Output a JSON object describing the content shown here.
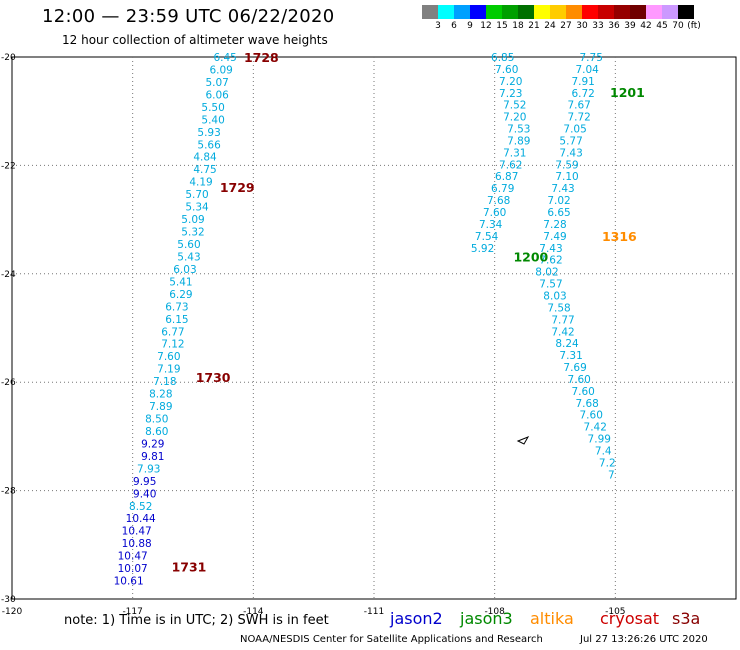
{
  "header": {
    "title": "12:00 — 23:59 UTC 06/22/2020",
    "subtitle": "12 hour collection of altimeter wave heights"
  },
  "legend": {
    "unit": "(ft)",
    "items": [
      {
        "label": "3",
        "color": "#808080"
      },
      {
        "label": "6",
        "color": "#00ffff"
      },
      {
        "label": "9",
        "color": "#00a0ff"
      },
      {
        "label": "12",
        "color": "#0000ff"
      },
      {
        "label": "15",
        "color": "#00cc00"
      },
      {
        "label": "18",
        "color": "#00a000"
      },
      {
        "label": "21",
        "color": "#007000"
      },
      {
        "label": "24",
        "color": "#ffff00"
      },
      {
        "label": "27",
        "color": "#ffcc00"
      },
      {
        "label": "30",
        "color": "#ff8c00"
      },
      {
        "label": "33",
        "color": "#ff0000"
      },
      {
        "label": "36",
        "color": "#c80000"
      },
      {
        "label": "39",
        "color": "#960000"
      },
      {
        "label": "42",
        "color": "#700000"
      },
      {
        "label": "45",
        "color": "#ff99ff"
      },
      {
        "label": "70",
        "color": "#cc99ff"
      },
      {
        "label": "",
        "color": "#000000"
      }
    ]
  },
  "map": {
    "lon_range": [
      -120,
      -102
    ],
    "lat_range": [
      -20,
      -30
    ],
    "lon_ticks": [
      "-120",
      "-117",
      "-114",
      "-111",
      "-108",
      "-105"
    ],
    "lat_ticks": [
      "-20",
      "-22",
      "-24",
      "-26",
      "-28",
      "-30"
    ],
    "land_shape": "island-outline",
    "colors": {
      "jason2": "#0000cc",
      "jason3": "#008800",
      "altika": "#ff8c00",
      "cryosat": "#cc0000",
      "s3a": "#880000",
      "swh_low": "#00aadd",
      "swh_mid": "#0000cc"
    },
    "tracks": [
      {
        "satellite": "s3a",
        "times": [
          {
            "label": "1728",
            "lat": -20.0
          },
          {
            "label": "1729",
            "lat": -22.4
          },
          {
            "label": "1730",
            "lat": -25.9
          },
          {
            "label": "1731",
            "lat": -29.4
          }
        ],
        "points": [
          {
            "lat": -20.0,
            "lon": -114.7,
            "v": "6.45"
          },
          {
            "lat": -20.23,
            "lon": -114.8,
            "v": "6.09"
          },
          {
            "lat": -20.46,
            "lon": -114.9,
            "v": "5.07"
          },
          {
            "lat": -20.69,
            "lon": -114.9,
            "v": "6.06"
          },
          {
            "lat": -20.92,
            "lon": -115.0,
            "v": "5.50"
          },
          {
            "lat": -21.15,
            "lon": -115.0,
            "v": "5.40"
          },
          {
            "lat": -21.38,
            "lon": -115.1,
            "v": "5.93"
          },
          {
            "lat": -21.61,
            "lon": -115.1,
            "v": "5.66"
          },
          {
            "lat": -21.84,
            "lon": -115.2,
            "v": "4.84"
          },
          {
            "lat": -22.07,
            "lon": -115.2,
            "v": "4.75"
          },
          {
            "lat": -22.3,
            "lon": -115.3,
            "v": "4.19"
          },
          {
            "lat": -22.53,
            "lon": -115.4,
            "v": "5.70"
          },
          {
            "lat": -22.76,
            "lon": -115.4,
            "v": "5.34"
          },
          {
            "lat": -22.99,
            "lon": -115.5,
            "v": "5.09"
          },
          {
            "lat": -23.22,
            "lon": -115.5,
            "v": "5.32"
          },
          {
            "lat": -23.45,
            "lon": -115.6,
            "v": "5.60"
          },
          {
            "lat": -23.68,
            "lon": -115.6,
            "v": "5.43"
          },
          {
            "lat": -23.91,
            "lon": -115.7,
            "v": "6.03"
          },
          {
            "lat": -24.14,
            "lon": -115.8,
            "v": "5.41"
          },
          {
            "lat": -24.37,
            "lon": -115.8,
            "v": "6.29"
          },
          {
            "lat": -24.6,
            "lon": -115.9,
            "v": "6.73"
          },
          {
            "lat": -24.83,
            "lon": -115.9,
            "v": "6.15"
          },
          {
            "lat": -25.06,
            "lon": -116.0,
            "v": "6.77"
          },
          {
            "lat": -25.29,
            "lon": -116.0,
            "v": "7.12"
          },
          {
            "lat": -25.52,
            "lon": -116.1,
            "v": "7.60"
          },
          {
            "lat": -25.75,
            "lon": -116.1,
            "v": "7.19"
          },
          {
            "lat": -25.98,
            "lon": -116.2,
            "v": "7.18"
          },
          {
            "lat": -26.21,
            "lon": -116.3,
            "v": "8.28"
          },
          {
            "lat": -26.44,
            "lon": -116.3,
            "v": "7.89"
          },
          {
            "lat": -26.67,
            "lon": -116.4,
            "v": "8.50"
          },
          {
            "lat": -26.9,
            "lon": -116.4,
            "v": "8.60"
          },
          {
            "lat": -27.13,
            "lon": -116.5,
            "v": "9.29"
          },
          {
            "lat": -27.36,
            "lon": -116.5,
            "v": "9.81"
          },
          {
            "lat": -27.59,
            "lon": -116.6,
            "v": "7.93"
          },
          {
            "lat": -27.82,
            "lon": -116.7,
            "v": "9.95"
          },
          {
            "lat": -28.05,
            "lon": -116.7,
            "v": "9.40"
          },
          {
            "lat": -28.28,
            "lon": -116.8,
            "v": "8.52"
          },
          {
            "lat": -28.51,
            "lon": -116.8,
            "v": "10.44"
          },
          {
            "lat": -28.74,
            "lon": -116.9,
            "v": "10.47"
          },
          {
            "lat": -28.97,
            "lon": -116.9,
            "v": "10.88"
          },
          {
            "lat": -29.2,
            "lon": -117.0,
            "v": "10.47"
          },
          {
            "lat": -29.43,
            "lon": -117.0,
            "v": "10.07"
          },
          {
            "lat": -29.66,
            "lon": -117.1,
            "v": "10.61"
          }
        ]
      },
      {
        "satellite": "jason3",
        "times": [
          {
            "label": "1201",
            "lat": -20.65
          },
          {
            "label": "1200",
            "lat": -23.68
          }
        ],
        "points": [
          {
            "lat": -20.0,
            "lon": -105.6,
            "v": "7.75"
          },
          {
            "lat": -20.22,
            "lon": -105.7,
            "v": "7.04"
          },
          {
            "lat": -20.44,
            "lon": -105.8,
            "v": "7.91"
          },
          {
            "lat": -20.66,
            "lon": -105.8,
            "v": "6.72"
          },
          {
            "lat": -20.88,
            "lon": -105.9,
            "v": "7.67"
          },
          {
            "lat": -21.1,
            "lon": -105.9,
            "v": "7.72"
          },
          {
            "lat": -21.32,
            "lon": -106.0,
            "v": "7.05"
          },
          {
            "lat": -21.54,
            "lon": -106.1,
            "v": "5.77"
          },
          {
            "lat": -21.76,
            "lon": -106.1,
            "v": "7.43"
          },
          {
            "lat": -21.98,
            "lon": -106.2,
            "v": "7.59"
          },
          {
            "lat": -22.2,
            "lon": -106.2,
            "v": "7.10"
          },
          {
            "lat": -22.42,
            "lon": -106.3,
            "v": "7.43"
          },
          {
            "lat": -22.64,
            "lon": -106.4,
            "v": "7.02"
          },
          {
            "lat": -22.86,
            "lon": -106.4,
            "v": "6.65"
          },
          {
            "lat": -23.08,
            "lon": -106.5,
            "v": "7.28"
          },
          {
            "lat": -23.3,
            "lon": -106.5,
            "v": "7.49"
          },
          {
            "lat": -23.52,
            "lon": -106.6,
            "v": "7.43"
          },
          {
            "lat": -23.74,
            "lon": -106.6,
            "v": "7.62"
          },
          {
            "lat": -23.96,
            "lon": -106.7,
            "v": "8.02"
          },
          {
            "lat": -24.18,
            "lon": -106.6,
            "v": "7.57"
          },
          {
            "lat": -24.4,
            "lon": -106.5,
            "v": "8.03"
          },
          {
            "lat": -24.62,
            "lon": -106.4,
            "v": "7.58"
          },
          {
            "lat": -24.84,
            "lon": -106.3,
            "v": "7.77"
          },
          {
            "lat": -25.06,
            "lon": -106.3,
            "v": "7.42"
          },
          {
            "lat": -25.28,
            "lon": -106.2,
            "v": "8.24"
          },
          {
            "lat": -25.5,
            "lon": -106.1,
            "v": "7.31"
          },
          {
            "lat": -25.72,
            "lon": -106.0,
            "v": "7.69"
          },
          {
            "lat": -25.94,
            "lon": -105.9,
            "v": "7.60"
          },
          {
            "lat": -26.16,
            "lon": -105.8,
            "v": "7.60"
          },
          {
            "lat": -26.38,
            "lon": -105.7,
            "v": "7.68"
          },
          {
            "lat": -26.6,
            "lon": -105.6,
            "v": "7.60"
          },
          {
            "lat": -26.82,
            "lon": -105.5,
            "v": "7.42"
          },
          {
            "lat": -27.04,
            "lon": -105.4,
            "v": "7.99"
          },
          {
            "lat": -27.26,
            "lon": -105.3,
            "v": "7.4"
          },
          {
            "lat": -27.48,
            "lon": -105.2,
            "v": "7.2"
          },
          {
            "lat": -27.7,
            "lon": -105.1,
            "v": "7"
          }
        ]
      },
      {
        "satellite": "jason3-north",
        "points": [
          {
            "lat": -20.0,
            "lon": -107.8,
            "v": "6.85"
          },
          {
            "lat": -20.22,
            "lon": -107.7,
            "v": "7.60"
          },
          {
            "lat": -20.44,
            "lon": -107.6,
            "v": "7.20"
          },
          {
            "lat": -20.66,
            "lon": -107.6,
            "v": "7.23"
          },
          {
            "lat": -20.88,
            "lon": -107.5,
            "v": "7.52"
          },
          {
            "lat": -21.1,
            "lon": -107.5,
            "v": "7.20"
          },
          {
            "lat": -21.32,
            "lon": -107.4,
            "v": "7.53"
          },
          {
            "lat": -21.54,
            "lon": -107.4,
            "v": "7.89"
          },
          {
            "lat": -21.76,
            "lon": -107.5,
            "v": "7.31"
          },
          {
            "lat": -21.98,
            "lon": -107.6,
            "v": "7.62"
          },
          {
            "lat": -22.2,
            "lon": -107.7,
            "v": "6.87"
          },
          {
            "lat": -22.42,
            "lon": -107.8,
            "v": "6.79"
          },
          {
            "lat": -22.64,
            "lon": -107.9,
            "v": "7.68"
          },
          {
            "lat": -22.86,
            "lon": -108.0,
            "v": "7.60"
          },
          {
            "lat": -23.08,
            "lon": -108.1,
            "v": "7.34"
          },
          {
            "lat": -23.3,
            "lon": -108.2,
            "v": "7.54"
          },
          {
            "lat": -23.52,
            "lon": -108.3,
            "v": "5.92"
          }
        ]
      },
      {
        "satellite": "altika",
        "times": [
          {
            "label": "1316",
            "lat": -23.3
          }
        ],
        "points": []
      }
    ]
  },
  "footer": {
    "note": "note:  1) Time is in UTC;  2) SWH is in feet",
    "satellites": [
      {
        "name": "jason2",
        "color": "#0000cc"
      },
      {
        "name": "jason3",
        "color": "#008800"
      },
      {
        "name": "altika",
        "color": "#ff8c00"
      },
      {
        "name": "cryosat",
        "color": "#cc0000"
      },
      {
        "name": "s3a",
        "color": "#880000"
      }
    ],
    "credit": "NOAA/NESDIS Center for Satellite Applications and Research",
    "timestamp": "Jul 27 13:26:26 UTC 2020"
  }
}
